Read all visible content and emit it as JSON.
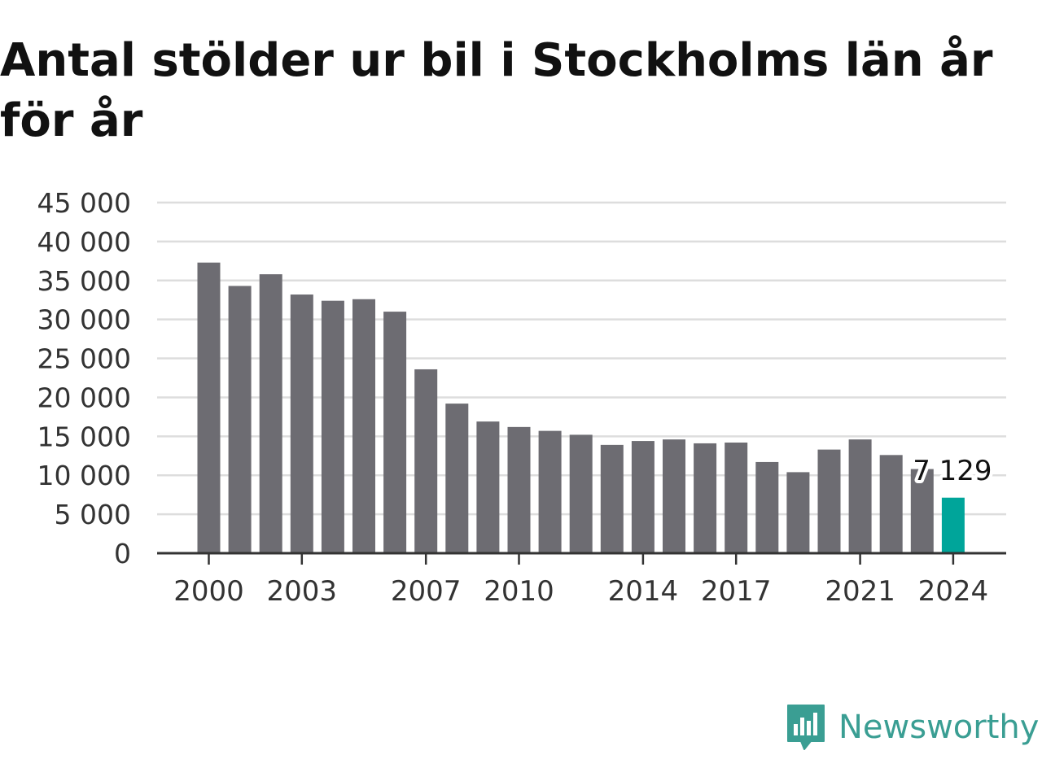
{
  "title": "Antal stölder ur bil i Stockholms län år för år",
  "brand": {
    "name": "Newsworthy",
    "color": "#3a9e93"
  },
  "colors": {
    "bar": "#6d6c72",
    "highlight": "#00a59a",
    "grid": "#dddddd",
    "axis": "#333333"
  },
  "chart_data": {
    "type": "bar",
    "title": "Antal stölder ur bil i Stockholms län år för år",
    "xlabel": "",
    "ylabel": "",
    "categories": [
      "2000",
      "2001",
      "2002",
      "2003",
      "2004",
      "2005",
      "2006",
      "2007",
      "2008",
      "2009",
      "2010",
      "2011",
      "2012",
      "2013",
      "2014",
      "2015",
      "2016",
      "2017",
      "2018",
      "2019",
      "2020",
      "2021",
      "2022",
      "2023",
      "2024"
    ],
    "values": [
      37300,
      34300,
      35800,
      33200,
      32400,
      32600,
      31000,
      23600,
      19200,
      16900,
      16200,
      15700,
      15200,
      13900,
      14400,
      14600,
      14100,
      14200,
      11700,
      10400,
      13300,
      14600,
      12600,
      10800,
      7129
    ],
    "highlight_index": 24,
    "highlight_label": "7 129",
    "ylim": [
      0,
      45000
    ],
    "yticks": [
      0,
      5000,
      10000,
      15000,
      20000,
      25000,
      30000,
      35000,
      40000,
      45000
    ],
    "ytick_labels": [
      "0",
      "5 000",
      "10 000",
      "15 000",
      "20 000",
      "25 000",
      "30 000",
      "35 000",
      "40 000",
      "45 000"
    ],
    "xtick_labels": [
      "2000",
      "2003",
      "2007",
      "2010",
      "2014",
      "2017",
      "2021",
      "2024"
    ],
    "grid": true,
    "legend": "none"
  }
}
